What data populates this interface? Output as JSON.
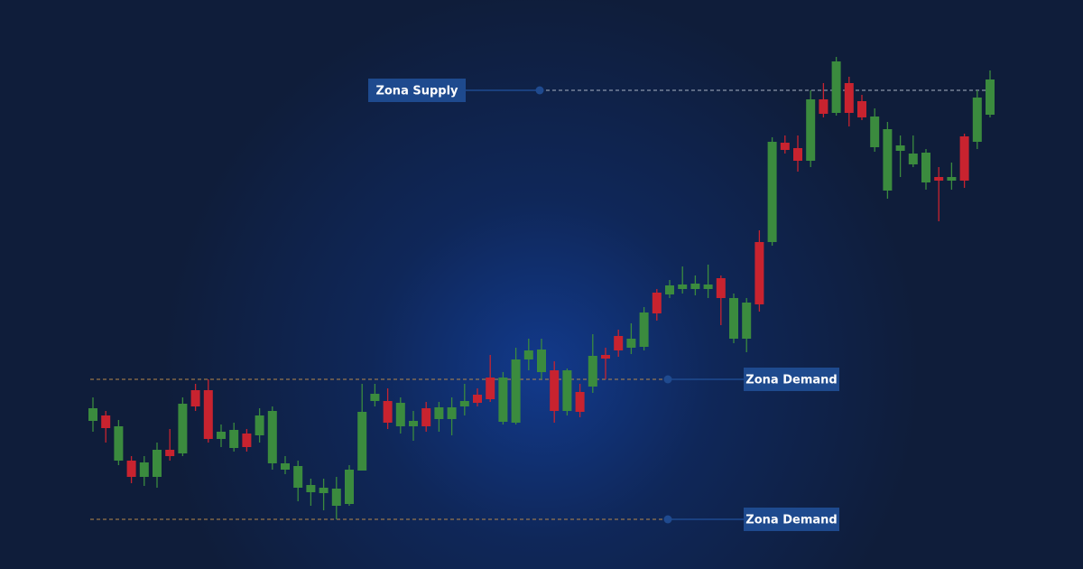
{
  "chart_data": {
    "type": "candlestick",
    "ylim": [
      0,
      630
    ],
    "up_color": "#3b8b3e",
    "down_color": "#c8232f",
    "open": [
      164,
      170,
      120,
      120,
      102,
      102,
      132,
      128,
      198,
      198,
      144,
      134,
      150,
      148,
      117,
      110,
      90,
      85,
      84,
      70,
      72,
      109,
      186,
      186,
      158,
      158,
      178,
      166,
      166,
      180,
      193,
      212,
      163,
      162,
      232,
      218,
      220,
      175,
      196,
      202,
      237,
      258,
      245,
      246,
      306,
      304,
      310,
      310,
      310,
      322,
      255,
      255,
      362,
      362,
      472,
      466,
      452,
      520,
      505,
      538,
      518,
      467,
      419,
      463,
      448,
      428,
      434,
      430,
      479,
      473,
      503
    ],
    "high": [
      190,
      175,
      165,
      125,
      125,
      140,
      155,
      190,
      205,
      210,
      160,
      162,
      155,
      178,
      180,
      125,
      120,
      100,
      100,
      102,
      115,
      205,
      205,
      200,
      190,
      175,
      185,
      185,
      190,
      205,
      200,
      237,
      218,
      245,
      255,
      255,
      230,
      222,
      205,
      260,
      245,
      265,
      272,
      290,
      310,
      320,
      335,
      325,
      337,
      325,
      305,
      300,
      375,
      478,
      480,
      480,
      530,
      538,
      567,
      545,
      525,
      510,
      495,
      480,
      480,
      465,
      445,
      450,
      482,
      530,
      552
    ],
    "low": [
      152,
      140,
      115,
      95,
      92,
      90,
      120,
      125,
      175,
      140,
      135,
      130,
      130,
      140,
      110,
      105,
      75,
      70,
      65,
      55,
      70,
      109,
      180,
      155,
      150,
      142,
      152,
      152,
      148,
      170,
      180,
      185,
      160,
      160,
      220,
      210,
      162,
      170,
      168,
      195,
      210,
      235,
      238,
      242,
      275,
      300,
      305,
      303,
      300,
      270,
      250,
      240,
      285,
      358,
      460,
      440,
      445,
      500,
      502,
      490,
      497,
      462,
      410,
      434,
      445,
      420,
      385,
      420,
      422,
      465,
      500
    ],
    "close": [
      178,
      156,
      158,
      102,
      118,
      132,
      125,
      183,
      180,
      144,
      152,
      154,
      135,
      170,
      175,
      117,
      114,
      93,
      90,
      89,
      110,
      174,
      194,
      162,
      184,
      164,
      158,
      179,
      179,
      186,
      184,
      188,
      212,
      232,
      242,
      243,
      175,
      220,
      174,
      236,
      233,
      242,
      255,
      284,
      283,
      314,
      315,
      316,
      315,
      300,
      300,
      295,
      293,
      473,
      464,
      452,
      520,
      504,
      562,
      505,
      500,
      501,
      487,
      469,
      460,
      461,
      430,
      434,
      430,
      522,
      542
    ],
    "annotations": [
      {
        "text": "Zona Supply",
        "value": 530,
        "line_color": "#a9b3c4"
      },
      {
        "text": "Zona Demand",
        "value": 210,
        "line_color": "#b8894a"
      },
      {
        "text": "Zona Demand",
        "value": 55,
        "line_color": "#b8894a"
      }
    ]
  }
}
